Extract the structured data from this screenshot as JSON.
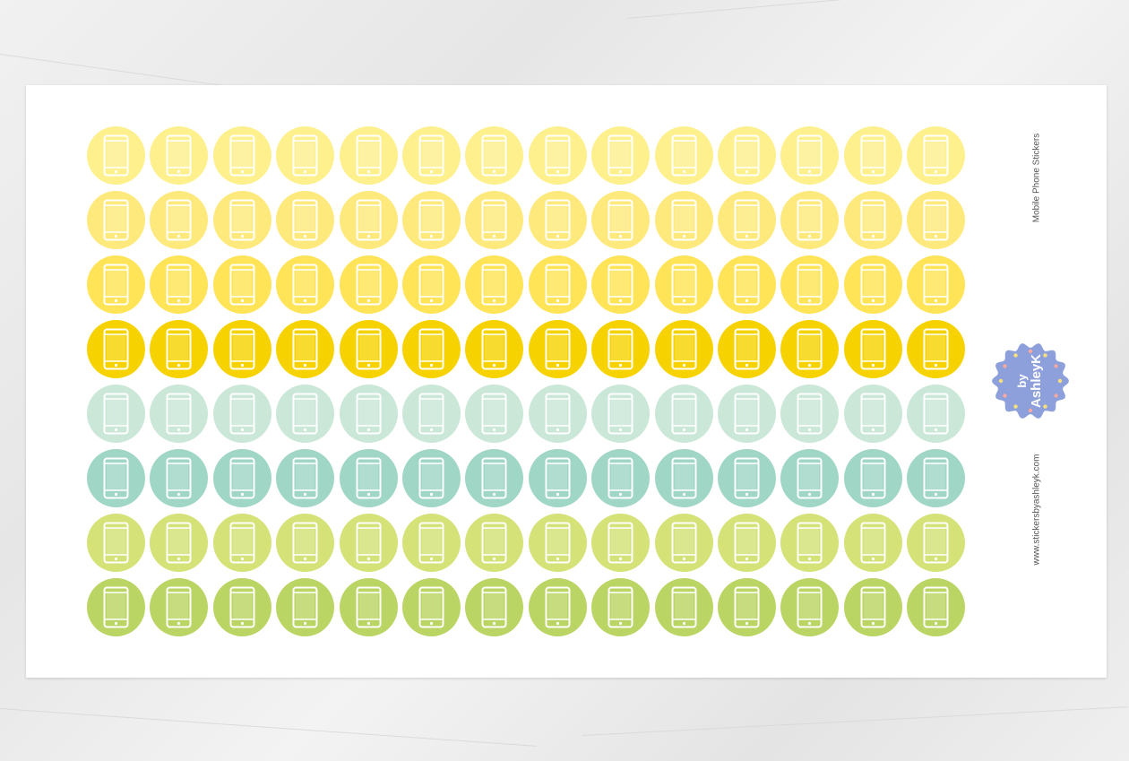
{
  "sheet": {
    "title": "Mobile Phone Stickers",
    "website": "www.stickersbyashleyk.com",
    "logo": {
      "text_line1": "by",
      "text_line2": "AshleyK",
      "color": "#8da0db"
    }
  },
  "stickers": {
    "icon": "mobile-phone-icon",
    "columns": 14,
    "rows": [
      {
        "color": "#fdf08d"
      },
      {
        "color": "#fde97c"
      },
      {
        "color": "#fee456"
      },
      {
        "color": "#f6d300"
      },
      {
        "color": "#cae7d8"
      },
      {
        "color": "#9fd6c6"
      },
      {
        "color": "#d4e277"
      },
      {
        "color": "#bad563"
      }
    ]
  }
}
